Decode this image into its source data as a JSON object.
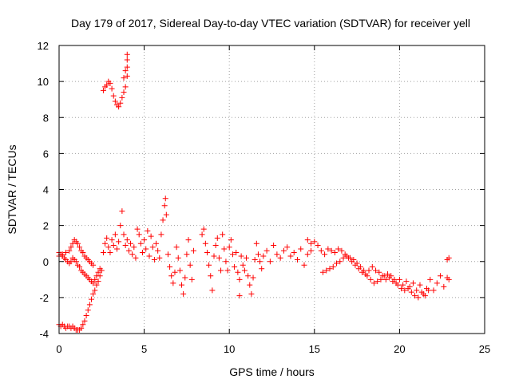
{
  "chart_data": {
    "type": "scatter",
    "title": "Day 179 of 2017, Sidereal Day-to-day VTEC variation (SDTVAR) for receiver yell",
    "xlabel": "GPS time / hours",
    "ylabel": "SDTVAR / TECUs",
    "xlim": [
      0,
      25
    ],
    "ylim": [
      -4,
      12
    ],
    "xticks": [
      0,
      5,
      10,
      15,
      20,
      25
    ],
    "yticks": [
      -4,
      -2,
      0,
      2,
      4,
      6,
      8,
      10,
      12
    ],
    "grid": true,
    "marker": "+",
    "color": "#ff0000",
    "series": [
      {
        "name": "SDTVAR",
        "points": [
          [
            0.0,
            -3.5
          ],
          [
            0.1,
            -3.6
          ],
          [
            0.2,
            -3.5
          ],
          [
            0.3,
            -3.6
          ],
          [
            0.4,
            -3.7
          ],
          [
            0.5,
            -3.6
          ],
          [
            0.6,
            -3.6
          ],
          [
            0.7,
            -3.7
          ],
          [
            0.8,
            -3.6
          ],
          [
            0.9,
            -3.7
          ],
          [
            1.0,
            -3.8
          ],
          [
            1.1,
            -3.8
          ],
          [
            1.2,
            -3.8
          ],
          [
            1.3,
            -3.7
          ],
          [
            1.4,
            -3.5
          ],
          [
            1.5,
            -3.3
          ],
          [
            1.6,
            -3.0
          ],
          [
            1.7,
            -2.7
          ],
          [
            1.8,
            -2.4
          ],
          [
            1.9,
            -2.1
          ],
          [
            2.0,
            -1.8
          ],
          [
            2.1,
            -1.6
          ],
          [
            2.2,
            -1.3
          ],
          [
            2.3,
            -1.1
          ],
          [
            2.4,
            -0.8
          ],
          [
            2.5,
            -0.5
          ],
          [
            0.0,
            0.5
          ],
          [
            0.1,
            0.4
          ],
          [
            0.2,
            0.3
          ],
          [
            0.3,
            0.2
          ],
          [
            0.4,
            0.1
          ],
          [
            0.5,
            0.0
          ],
          [
            0.6,
            -0.1
          ],
          [
            0.7,
            0.0
          ],
          [
            0.8,
            0.2
          ],
          [
            0.9,
            0.1
          ],
          [
            1.0,
            0.0
          ],
          [
            1.1,
            -0.2
          ],
          [
            1.2,
            -0.3
          ],
          [
            1.3,
            -0.5
          ],
          [
            1.4,
            -0.6
          ],
          [
            1.5,
            -0.7
          ],
          [
            1.6,
            -0.8
          ],
          [
            1.7,
            -0.9
          ],
          [
            1.8,
            -1.0
          ],
          [
            1.9,
            -1.1
          ],
          [
            2.0,
            -1.2
          ],
          [
            2.1,
            -1.0
          ],
          [
            2.2,
            -0.8
          ],
          [
            2.3,
            -0.6
          ],
          [
            2.4,
            -0.4
          ],
          [
            0.0,
            0.3
          ],
          [
            0.2,
            0.4
          ],
          [
            0.4,
            0.5
          ],
          [
            0.6,
            0.6
          ],
          [
            0.7,
            0.8
          ],
          [
            0.8,
            1.0
          ],
          [
            0.9,
            1.2
          ],
          [
            1.0,
            1.1
          ],
          [
            1.1,
            1.0
          ],
          [
            1.2,
            0.8
          ],
          [
            1.3,
            0.6
          ],
          [
            1.4,
            0.5
          ],
          [
            1.5,
            0.3
          ],
          [
            1.6,
            0.2
          ],
          [
            1.7,
            0.1
          ],
          [
            1.8,
            0.0
          ],
          [
            1.9,
            -0.1
          ],
          [
            2.0,
            -0.2
          ],
          [
            2.6,
            0.5
          ],
          [
            2.7,
            1.0
          ],
          [
            2.8,
            1.3
          ],
          [
            2.9,
            0.8
          ],
          [
            3.0,
            0.5
          ],
          [
            3.1,
            1.2
          ],
          [
            3.2,
            0.9
          ],
          [
            3.3,
            1.5
          ],
          [
            3.4,
            0.7
          ],
          [
            3.5,
            1.1
          ],
          [
            3.6,
            2.0
          ],
          [
            3.7,
            2.8
          ],
          [
            3.8,
            1.5
          ],
          [
            3.9,
            0.9
          ],
          [
            4.0,
            1.2
          ],
          [
            4.1,
            0.6
          ],
          [
            4.2,
            1.0
          ],
          [
            4.3,
            0.4
          ],
          [
            4.4,
            0.8
          ],
          [
            4.5,
            0.2
          ],
          [
            2.6,
            9.5
          ],
          [
            2.7,
            9.7
          ],
          [
            2.8,
            9.8
          ],
          [
            2.9,
            10.0
          ],
          [
            3.0,
            9.9
          ],
          [
            3.1,
            9.6
          ],
          [
            3.2,
            9.2
          ],
          [
            3.3,
            8.9
          ],
          [
            3.4,
            8.7
          ],
          [
            3.5,
            8.6
          ],
          [
            3.6,
            8.8
          ],
          [
            3.7,
            9.1
          ],
          [
            3.8,
            9.4
          ],
          [
            3.9,
            9.7
          ],
          [
            4.0,
            10.3
          ],
          [
            4.0,
            10.8
          ],
          [
            4.0,
            11.2
          ],
          [
            4.0,
            11.5
          ],
          [
            3.9,
            10.6
          ],
          [
            3.8,
            10.2
          ],
          [
            4.6,
            1.8
          ],
          [
            4.7,
            1.5
          ],
          [
            4.8,
            1.0
          ],
          [
            4.9,
            0.5
          ],
          [
            5.0,
            1.2
          ],
          [
            5.1,
            0.7
          ],
          [
            5.2,
            1.7
          ],
          [
            5.3,
            0.3
          ],
          [
            5.4,
            1.4
          ],
          [
            5.5,
            0.8
          ],
          [
            5.6,
            0.1
          ],
          [
            5.7,
            1.0
          ],
          [
            5.8,
            0.6
          ],
          [
            5.9,
            0.2
          ],
          [
            6.0,
            1.5
          ],
          [
            6.1,
            2.3
          ],
          [
            6.2,
            3.1
          ],
          [
            6.25,
            3.5
          ],
          [
            6.3,
            2.6
          ],
          [
            6.4,
            0.4
          ],
          [
            6.5,
            -0.3
          ],
          [
            6.6,
            -0.8
          ],
          [
            6.7,
            -1.2
          ],
          [
            6.8,
            -0.6
          ],
          [
            6.9,
            0.8
          ],
          [
            7.0,
            0.2
          ],
          [
            7.1,
            -0.5
          ],
          [
            7.2,
            -1.3
          ],
          [
            7.3,
            -1.8
          ],
          [
            7.4,
            -0.9
          ],
          [
            7.5,
            0.4
          ],
          [
            7.6,
            1.2
          ],
          [
            7.7,
            -0.2
          ],
          [
            7.8,
            -1.0
          ],
          [
            7.9,
            0.6
          ],
          [
            8.4,
            1.5
          ],
          [
            8.5,
            1.8
          ],
          [
            8.6,
            1.0
          ],
          [
            8.7,
            0.5
          ],
          [
            8.8,
            -0.2
          ],
          [
            8.9,
            -0.8
          ],
          [
            9.0,
            -1.6
          ],
          [
            9.1,
            0.3
          ],
          [
            9.2,
            0.9
          ],
          [
            9.3,
            1.3
          ],
          [
            9.4,
            0.2
          ],
          [
            9.5,
            -0.5
          ],
          [
            9.6,
            1.5
          ],
          [
            9.7,
            0.7
          ],
          [
            9.8,
            0.0
          ],
          [
            9.9,
            -0.5
          ],
          [
            10.0,
            0.8
          ],
          [
            10.1,
            1.2
          ],
          [
            10.2,
            0.4
          ],
          [
            10.3,
            -0.3
          ],
          [
            10.4,
            0.5
          ],
          [
            10.5,
            -0.6
          ],
          [
            10.6,
            -1.0
          ],
          [
            10.7,
            0.3
          ],
          [
            10.8,
            -0.2
          ],
          [
            10.9,
            -0.5
          ],
          [
            11.0,
            0.2
          ],
          [
            11.1,
            -0.8
          ],
          [
            11.2,
            -1.3
          ],
          [
            11.3,
            -1.8
          ],
          [
            11.4,
            -0.9
          ],
          [
            11.5,
            0.1
          ],
          [
            11.6,
            1.0
          ],
          [
            11.7,
            0.4
          ],
          [
            11.8,
            0.0
          ],
          [
            11.9,
            -0.4
          ],
          [
            12.0,
            0.3
          ],
          [
            12.2,
            0.6
          ],
          [
            12.4,
            0.0
          ],
          [
            12.6,
            0.9
          ],
          [
            12.8,
            0.4
          ],
          [
            13.0,
            0.2
          ],
          [
            13.2,
            0.6
          ],
          [
            13.4,
            0.8
          ],
          [
            13.6,
            0.3
          ],
          [
            13.8,
            0.5
          ],
          [
            14.0,
            0.1
          ],
          [
            14.2,
            0.7
          ],
          [
            14.4,
            -0.2
          ],
          [
            14.6,
            0.4
          ],
          [
            14.8,
            0.6
          ],
          [
            10.6,
            -1.9
          ],
          [
            14.6,
            1.2
          ],
          [
            14.8,
            1.0
          ],
          [
            15.0,
            1.1
          ],
          [
            15.2,
            0.9
          ],
          [
            15.4,
            0.6
          ],
          [
            15.6,
            0.4
          ],
          [
            15.8,
            0.7
          ],
          [
            16.0,
            0.6
          ],
          [
            16.2,
            0.5
          ],
          [
            16.4,
            0.7
          ],
          [
            16.6,
            0.6
          ],
          [
            16.8,
            0.4
          ],
          [
            17.0,
            0.2
          ],
          [
            17.2,
            0.0
          ],
          [
            17.4,
            -0.2
          ],
          [
            17.6,
            -0.4
          ],
          [
            17.8,
            -0.6
          ],
          [
            18.0,
            -0.7
          ],
          [
            18.2,
            -0.5
          ],
          [
            18.4,
            -0.3
          ],
          [
            18.6,
            -0.5
          ],
          [
            18.8,
            -0.6
          ],
          [
            19.0,
            -0.8
          ],
          [
            19.2,
            -1.0
          ],
          [
            19.4,
            -0.9
          ],
          [
            19.6,
            -1.1
          ],
          [
            19.8,
            -1.2
          ],
          [
            20.0,
            -1.0
          ],
          [
            20.2,
            -1.3
          ],
          [
            20.4,
            -1.1
          ],
          [
            20.6,
            -1.4
          ],
          [
            20.8,
            -1.2
          ],
          [
            21.0,
            -1.6
          ],
          [
            21.2,
            -1.3
          ],
          [
            21.4,
            -1.8
          ],
          [
            21.6,
            -1.5
          ],
          [
            21.8,
            -1.0
          ],
          [
            22.0,
            -1.6
          ],
          [
            22.2,
            -1.2
          ],
          [
            22.4,
            -0.8
          ],
          [
            22.6,
            -1.4
          ],
          [
            22.8,
            -0.9
          ],
          [
            22.9,
            -1.0
          ],
          [
            22.8,
            0.1
          ],
          [
            22.9,
            0.2
          ],
          [
            15.5,
            -0.6
          ],
          [
            15.7,
            -0.5
          ],
          [
            15.9,
            -0.4
          ],
          [
            16.1,
            -0.3
          ],
          [
            16.3,
            -0.1
          ],
          [
            16.5,
            0.0
          ],
          [
            16.7,
            0.2
          ],
          [
            16.9,
            0.3
          ],
          [
            17.1,
            0.2
          ],
          [
            17.3,
            0.1
          ],
          [
            17.5,
            -0.1
          ],
          [
            17.7,
            -0.3
          ],
          [
            17.9,
            -0.5
          ],
          [
            18.1,
            -0.8
          ],
          [
            18.3,
            -1.0
          ],
          [
            18.5,
            -1.2
          ],
          [
            18.7,
            -1.1
          ],
          [
            18.9,
            -1.0
          ],
          [
            19.1,
            -0.8
          ],
          [
            19.3,
            -0.7
          ],
          [
            19.5,
            -0.8
          ],
          [
            19.7,
            -1.0
          ],
          [
            19.9,
            -1.3
          ],
          [
            20.1,
            -1.5
          ],
          [
            20.3,
            -1.6
          ],
          [
            20.5,
            -1.5
          ],
          [
            20.7,
            -1.7
          ],
          [
            20.9,
            -1.9
          ],
          [
            21.1,
            -2.0
          ],
          [
            21.3,
            -1.7
          ],
          [
            21.5,
            -1.9
          ],
          [
            21.7,
            -1.6
          ]
        ]
      }
    ]
  }
}
